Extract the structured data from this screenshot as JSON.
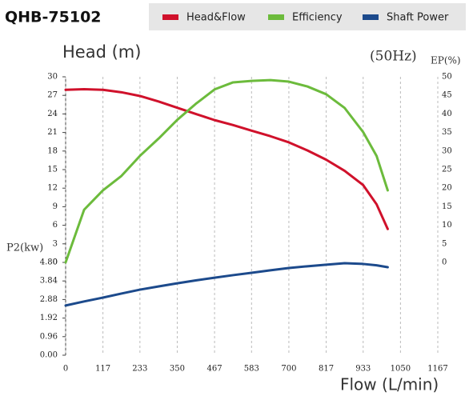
{
  "chart_data": {
    "type": "line",
    "title": "QHB-75102",
    "annotation": "(50Hz)",
    "x_label": "Flow (L/min)",
    "y_label": "Head (m)",
    "y2_label": "EP(%)",
    "y3_label": "P2(kw)",
    "x": [
      0,
      58,
      117,
      175,
      233,
      292,
      350,
      408,
      467,
      525,
      583,
      642,
      700,
      758,
      817,
      875,
      933,
      975,
      1010
    ],
    "series": [
      {
        "name": "Head&Flow",
        "color": "#d0112b",
        "axis": "y",
        "values": [
          27.9,
          28.0,
          27.9,
          27.5,
          26.9,
          26.0,
          25.0,
          24.0,
          23.0,
          22.2,
          21.3,
          20.4,
          19.4,
          18.1,
          16.6,
          14.8,
          12.5,
          9.4,
          5.4
        ]
      },
      {
        "name": "Efficiency",
        "color": "#6cbb3c",
        "axis": "y2",
        "values": [
          0,
          14.2,
          19.4,
          23.3,
          28.7,
          33.4,
          38.4,
          42.7,
          46.6,
          48.5,
          48.9,
          49.1,
          48.7,
          47.4,
          45.3,
          41.6,
          35.1,
          28.7,
          19.4
        ]
      },
      {
        "name": "Shaft Power",
        "color": "#1c4a8c",
        "axis": "y3",
        "values": [
          2.57,
          2.78,
          2.98,
          3.19,
          3.39,
          3.56,
          3.72,
          3.87,
          4.01,
          4.14,
          4.26,
          4.39,
          4.51,
          4.6,
          4.68,
          4.76,
          4.72,
          4.65,
          4.55
        ]
      }
    ],
    "xlim": [
      0,
      1167
    ],
    "xticks": [
      0,
      117,
      233,
      350,
      467,
      583,
      700,
      817,
      933,
      1050,
      1167
    ],
    "ylim": [
      0,
      30
    ],
    "yticks": [
      0,
      3,
      6,
      9,
      12,
      15,
      18,
      21,
      24,
      27,
      30
    ],
    "y2lim": [
      0,
      50
    ],
    "y2ticks": [
      0,
      5,
      10,
      15,
      20,
      25,
      30,
      35,
      40,
      45,
      50
    ],
    "y3lim": [
      0,
      4.8
    ],
    "y3ticks": [
      {
        "value": 0,
        "label": "0.00"
      },
      0.96,
      1.92,
      2.88,
      3.84,
      {
        "value": 4.8,
        "label": "4.80"
      }
    ],
    "grid": true
  }
}
